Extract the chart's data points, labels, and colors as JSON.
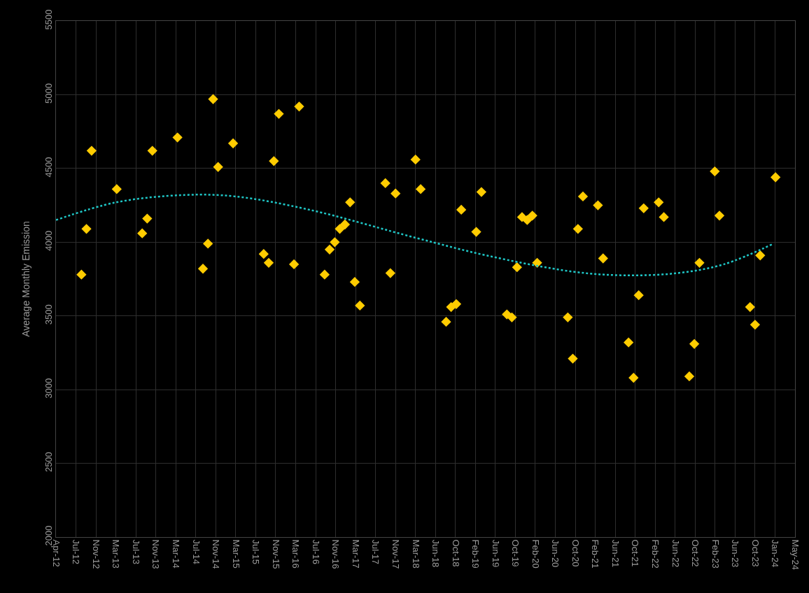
{
  "chart_data": {
    "type": "scatter",
    "ylabel": "Average Monthly Emission",
    "xlim": [
      "2012-04-01",
      "2024-05-28"
    ],
    "xticks": [
      {
        "value": "2012-04-01",
        "label": "Apr-12"
      },
      {
        "value": "2012-07-30",
        "label": "Jul-12"
      },
      {
        "value": "2012-11-27",
        "label": "Nov-12"
      },
      {
        "value": "2013-03-27",
        "label": "Mar-13"
      },
      {
        "value": "2013-07-25",
        "label": "Jul-13"
      },
      {
        "value": "2013-11-22",
        "label": "Nov-13"
      },
      {
        "value": "2014-03-22",
        "label": "Mar-14"
      },
      {
        "value": "2014-07-20",
        "label": "Jul-14"
      },
      {
        "value": "2014-11-17",
        "label": "Nov-14"
      },
      {
        "value": "2015-03-17",
        "label": "Mar-15"
      },
      {
        "value": "2015-07-15",
        "label": "Jul-15"
      },
      {
        "value": "2015-11-12",
        "label": "Nov-15"
      },
      {
        "value": "2016-03-11",
        "label": "Mar-16"
      },
      {
        "value": "2016-07-09",
        "label": "Jul-16"
      },
      {
        "value": "2016-11-06",
        "label": "Nov-16"
      },
      {
        "value": "2017-03-06",
        "label": "Mar-17"
      },
      {
        "value": "2017-07-04",
        "label": "Jul-17"
      },
      {
        "value": "2017-11-01",
        "label": "Nov-17"
      },
      {
        "value": "2018-03-01",
        "label": "Mar-18"
      },
      {
        "value": "2018-06-29",
        "label": "Jun-18"
      },
      {
        "value": "2018-10-27",
        "label": "Oct-18"
      },
      {
        "value": "2019-02-24",
        "label": "Feb-19"
      },
      {
        "value": "2019-06-24",
        "label": "Jun-19"
      },
      {
        "value": "2019-10-22",
        "label": "Oct-19"
      },
      {
        "value": "2020-02-19",
        "label": "Feb-20"
      },
      {
        "value": "2020-06-18",
        "label": "Jun-20"
      },
      {
        "value": "2020-10-16",
        "label": "Oct-20"
      },
      {
        "value": "2021-02-13",
        "label": "Feb-21"
      },
      {
        "value": "2021-06-13",
        "label": "Jun-21"
      },
      {
        "value": "2021-10-11",
        "label": "Oct-21"
      },
      {
        "value": "2022-02-08",
        "label": "Feb-22"
      },
      {
        "value": "2022-06-08",
        "label": "Jun-22"
      },
      {
        "value": "2022-10-06",
        "label": "Oct-22"
      },
      {
        "value": "2023-02-03",
        "label": "Feb-23"
      },
      {
        "value": "2023-06-03",
        "label": "Jun-23"
      },
      {
        "value": "2023-10-01",
        "label": "Oct-23"
      },
      {
        "value": "2024-01-29",
        "label": "Jan-24"
      },
      {
        "value": "2024-05-28",
        "label": "May-24"
      }
    ],
    "ylim": [
      2000,
      5500
    ],
    "yticks": [
      2000,
      2500,
      3000,
      3500,
      4000,
      4500,
      5000,
      5500
    ],
    "grid": true,
    "series": [
      {
        "marker": "diamond",
        "color": "#ffcc00",
        "x": [
          "2012-09",
          "2012-10",
          "2012-11",
          "2013-04",
          "2013-09",
          "2013-10",
          "2013-11",
          "2014-04",
          "2014-09",
          "2014-10",
          "2014-11",
          "2014-12",
          "2015-03",
          "2015-09",
          "2015-10",
          "2015-11",
          "2015-12",
          "2016-03",
          "2016-04",
          "2016-09",
          "2016-10",
          "2016-11",
          "2016-12",
          "2017-01",
          "2017-02",
          "2017-03",
          "2017-04",
          "2017-09",
          "2017-10",
          "2017-11",
          "2018-03",
          "2018-04",
          "2018-09",
          "2018-10",
          "2018-11",
          "2018-12",
          "2019-03",
          "2019-04",
          "2019-09",
          "2019-10",
          "2019-11",
          "2019-12",
          "2020-01",
          "2020-02",
          "2020-03",
          "2020-09",
          "2020-10",
          "2020-11",
          "2020-12",
          "2021-03",
          "2021-04",
          "2021-09",
          "2021-10",
          "2021-11",
          "2021-12",
          "2022-03",
          "2022-04",
          "2022-09",
          "2022-10",
          "2022-11",
          "2023-02",
          "2023-03",
          "2023-09",
          "2023-10",
          "2023-11",
          "2024-02"
        ],
        "values": [
          3780,
          4090,
          4620,
          4360,
          4060,
          4160,
          4620,
          4710,
          3820,
          3990,
          4970,
          4510,
          4670,
          3920,
          3860,
          4550,
          4870,
          3850,
          4920,
          3780,
          3950,
          4000,
          4090,
          4120,
          4270,
          3730,
          3570,
          4400,
          3790,
          4330,
          4560,
          4360,
          3460,
          3560,
          3580,
          4220,
          4070,
          4340,
          3510,
          3490,
          3830,
          4170,
          4150,
          4180,
          3860,
          3490,
          3210,
          4090,
          4310,
          4250,
          3890,
          3320,
          3080,
          3640,
          4230,
          4270,
          4170,
          3090,
          3310,
          3860,
          4480,
          4180,
          3560,
          3440,
          3910,
          4440
        ]
      },
      {
        "type": "line",
        "marker": "none",
        "line_style": "dotted",
        "color": "#1fc6c6",
        "x": [
          "2012-04-01",
          "2013-03-28",
          "2014-05-15",
          "2015-03-15",
          "2016-06-01",
          "2018-03-01",
          "2019-05-01",
          "2020-10-01",
          "2021-08-10",
          "2022-06-20",
          "2023-03-28",
          "2024-01-20"
        ],
        "values": [
          4150,
          4270,
          4320,
          4310,
          4220,
          4030,
          3910,
          3800,
          3775,
          3790,
          3850,
          3990
        ]
      }
    ]
  }
}
